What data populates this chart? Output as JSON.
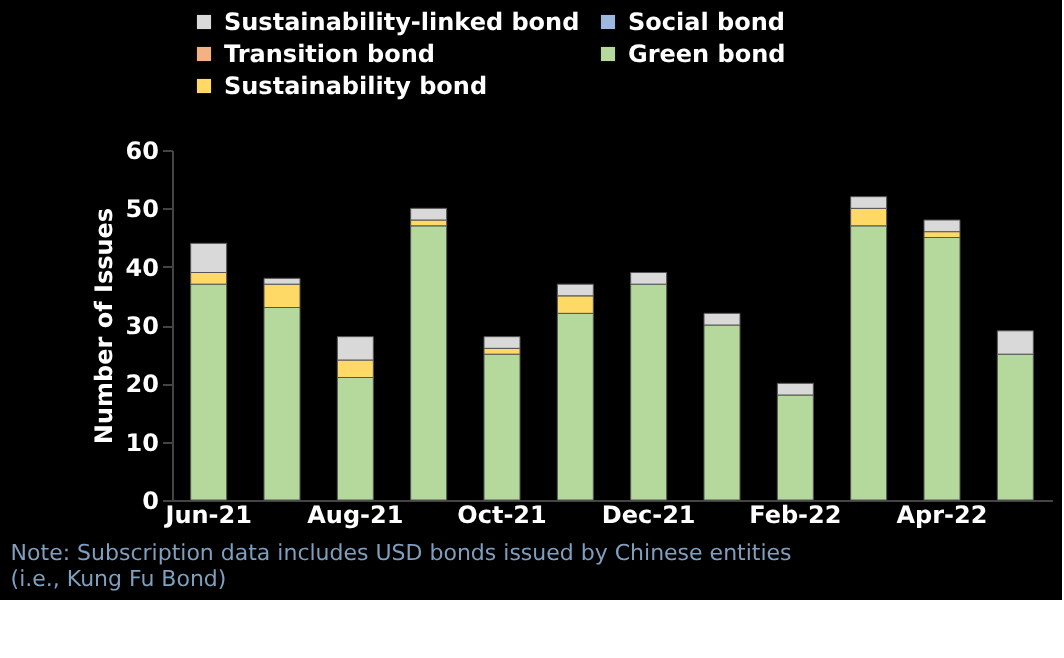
{
  "chart_data": {
    "type": "bar",
    "stacked": true,
    "ylabel": "Number of Issues",
    "categories": [
      "Jun-21",
      null,
      "Aug-21",
      null,
      "Oct-21",
      null,
      "Dec-21",
      null,
      "Feb-22",
      null,
      "Apr-22",
      null
    ],
    "series": [
      {
        "name": "Green bond",
        "color": "#b5d99c",
        "values": [
          37,
          33,
          21,
          47,
          25,
          32,
          37,
          30,
          18,
          47,
          45,
          25
        ]
      },
      {
        "name": "Social bond",
        "color": "#9fb8e0",
        "values": [
          0,
          0,
          0,
          0,
          0,
          0,
          0,
          0,
          0,
          0,
          0,
          0
        ]
      },
      {
        "name": "Sustainability bond",
        "color": "#ffd966",
        "values": [
          2,
          4,
          3,
          1,
          1,
          3,
          0,
          0,
          0,
          3,
          1,
          0
        ]
      },
      {
        "name": "Transition bond",
        "color": "#f4b183",
        "values": [
          0,
          0,
          0,
          0,
          0,
          0,
          0,
          0,
          0,
          0,
          0,
          0
        ]
      },
      {
        "name": "Sustainability-linked bond",
        "color": "#d9d9d9",
        "values": [
          5,
          1,
          4,
          2,
          2,
          2,
          2,
          2,
          2,
          2,
          2,
          4
        ]
      }
    ],
    "ylim": [
      0,
      60
    ],
    "yticks": [
      0,
      10,
      20,
      30,
      40,
      50,
      60
    ],
    "grid": false,
    "legend": "top left",
    "annotations": [
      "Note: Subscription data includes USD bonds issued by Chinese entities",
      "          (i.e., Kung Fu Bond)"
    ]
  }
}
